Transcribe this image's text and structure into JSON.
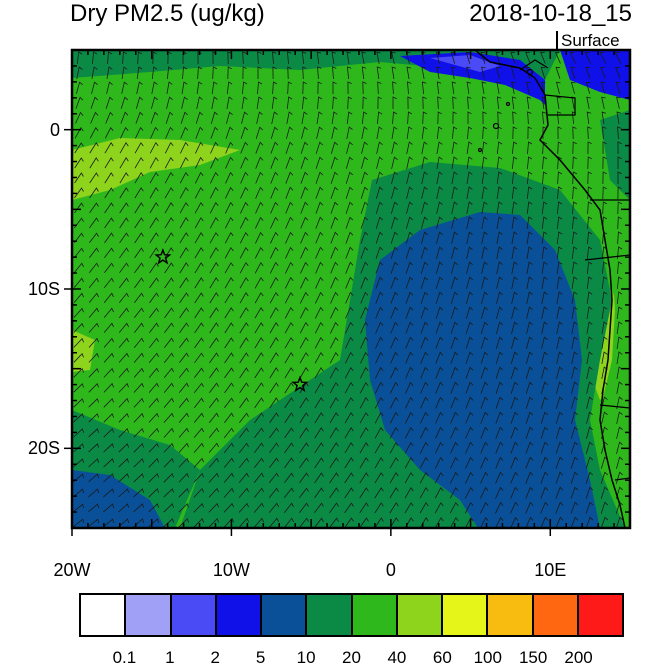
{
  "header": {
    "title": "Dry PM2.5 (ug/kg)",
    "datetime": "2018-10-18_15",
    "level": "Surface"
  },
  "map": {
    "lon_range": [
      -20,
      15
    ],
    "lat_range": [
      -25,
      5
    ],
    "lat_labels": [
      {
        "lat": 0,
        "text": "0"
      },
      {
        "lat": -10,
        "text": "10S"
      },
      {
        "lat": -20,
        "text": "20S"
      }
    ],
    "lon_labels": [
      {
        "lon": -20,
        "text": "20W"
      },
      {
        "lon": -10,
        "text": "10W"
      },
      {
        "lon": 0,
        "text": "0"
      },
      {
        "lon": 10,
        "text": "10E"
      }
    ],
    "markers": [
      {
        "name": "station-star",
        "lon": -14.3,
        "lat": -8.0
      },
      {
        "name": "station-star",
        "lon": -5.7,
        "lat": -16.0
      }
    ],
    "fill_colors": {
      "class_5_10": "#0a5098",
      "class_10_20": "#0b8a46",
      "class_20_40": "#2fb81c",
      "class_40_60": "#8ed31c",
      "class_2_5": "#1010e8",
      "class_1_2": "#4b4bf5"
    }
  },
  "colorbar": {
    "colors": [
      "#ffffff",
      "#a0a0f6",
      "#4b4bf5",
      "#1010e8",
      "#0a5098",
      "#0b8a46",
      "#2fb81c",
      "#8ed31c",
      "#e5f51a",
      "#f8bc10",
      "#ff6710",
      "#ff1a1a"
    ],
    "labels": [
      "0.1",
      "1",
      "2",
      "5",
      "10",
      "20",
      "40",
      "60",
      "100",
      "150",
      "200"
    ]
  }
}
